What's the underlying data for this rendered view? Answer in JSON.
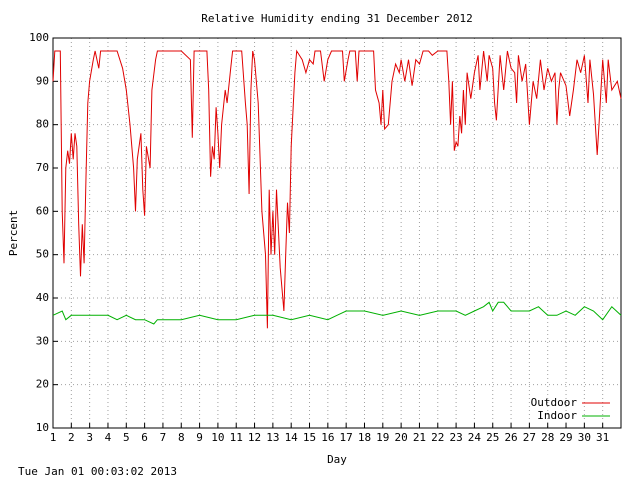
{
  "chart_data": {
    "type": "line",
    "title": "Relative Humidity ending 31 December 2012",
    "x_label": "Day",
    "y_label": "Percent",
    "footer": "Tue Jan 01 00:03:02 2013",
    "xlim": [
      1,
      32
    ],
    "ylim": [
      10,
      100
    ],
    "xticks": [
      1,
      2,
      3,
      4,
      5,
      6,
      7,
      8,
      9,
      10,
      11,
      12,
      13,
      14,
      15,
      16,
      17,
      18,
      19,
      20,
      21,
      22,
      23,
      24,
      25,
      26,
      27,
      28,
      29,
      30,
      31
    ],
    "yticks": [
      10,
      20,
      30,
      40,
      50,
      60,
      70,
      80,
      90,
      100
    ],
    "grid": true,
    "legend": "bottom-right",
    "series": [
      {
        "name": "Outdoor",
        "color": "#e00000",
        "x": [
          1.0,
          1.1,
          1.4,
          1.5,
          1.6,
          1.7,
          1.8,
          1.9,
          2.0,
          2.1,
          2.2,
          2.3,
          2.4,
          2.5,
          2.6,
          2.7,
          2.8,
          2.9,
          3.0,
          3.2,
          3.3,
          3.5,
          3.6,
          4.0,
          4.5,
          4.8,
          5.0,
          5.2,
          5.4,
          5.5,
          5.6,
          5.8,
          5.9,
          6.0,
          6.1,
          6.3,
          6.4,
          6.6,
          6.7,
          7.5,
          8.0,
          8.5,
          8.6,
          8.7,
          9.4,
          9.5,
          9.6,
          9.7,
          9.8,
          9.9,
          10.0,
          10.1,
          10.2,
          10.4,
          10.5,
          10.7,
          10.8,
          11.3,
          11.5,
          11.6,
          11.7,
          11.8,
          11.9,
          12.0,
          12.2,
          12.4,
          12.6,
          12.7,
          12.8,
          12.9,
          13.0,
          13.1,
          13.2,
          13.4,
          13.6,
          13.7,
          13.8,
          13.9,
          14.0,
          14.2,
          14.3,
          14.6,
          14.8,
          15.0,
          15.2,
          15.3,
          15.6,
          15.8,
          16.0,
          16.2,
          16.8,
          16.9,
          17.1,
          17.2,
          17.5,
          17.6,
          17.7,
          18.5,
          18.6,
          18.8,
          18.9,
          19.0,
          19.1,
          19.3,
          19.5,
          19.7,
          19.9,
          20.0,
          20.2,
          20.4,
          20.6,
          20.8,
          21.0,
          21.2,
          21.5,
          21.7,
          22.0,
          22.5,
          22.6,
          22.7,
          22.8,
          22.9,
          23.0,
          23.1,
          23.2,
          23.3,
          23.4,
          23.5,
          23.6,
          23.8,
          24.0,
          24.2,
          24.3,
          24.5,
          24.7,
          24.8,
          25.0,
          25.1,
          25.2,
          25.4,
          25.6,
          25.8,
          26.0,
          26.2,
          26.3,
          26.4,
          26.6,
          26.8,
          27.0,
          27.2,
          27.4,
          27.6,
          27.8,
          28.0,
          28.2,
          28.4,
          28.5,
          28.6,
          28.7,
          29.0,
          29.2,
          29.4,
          29.6,
          29.8,
          30.0,
          30.2,
          30.3,
          30.5,
          30.7,
          30.8,
          31.0,
          31.2,
          31.3,
          31.5,
          31.8,
          32.0
        ],
        "values": [
          90,
          97,
          97,
          60,
          48,
          70,
          74,
          71,
          78,
          72,
          78,
          75,
          57,
          45,
          57,
          48,
          68,
          85,
          90,
          95,
          97,
          93,
          97,
          97,
          97,
          93,
          88,
          80,
          70,
          60,
          72,
          78,
          65,
          59,
          75,
          70,
          88,
          95,
          97,
          97,
          97,
          95,
          77,
          97,
          97,
          88,
          68,
          75,
          72,
          84,
          78,
          70,
          80,
          88,
          85,
          93,
          97,
          97,
          85,
          80,
          64,
          88,
          97,
          95,
          85,
          60,
          50,
          33,
          65,
          50,
          60,
          50,
          65,
          47,
          37,
          50,
          62,
          55,
          75,
          92,
          97,
          95,
          92,
          95,
          94,
          97,
          97,
          90,
          95,
          97,
          97,
          90,
          95,
          97,
          97,
          90,
          97,
          97,
          88,
          85,
          80,
          88,
          79,
          80,
          90,
          94,
          92,
          95,
          90,
          95,
          89,
          95,
          94,
          97,
          97,
          96,
          97,
          97,
          90,
          80,
          90,
          74,
          76,
          75,
          82,
          78,
          88,
          80,
          92,
          86,
          92,
          96,
          88,
          97,
          90,
          96,
          93,
          85,
          81,
          96,
          88,
          97,
          93,
          92,
          85,
          96,
          90,
          94,
          80,
          90,
          86,
          95,
          88,
          93,
          90,
          92,
          80,
          88,
          92,
          89,
          82,
          88,
          95,
          92,
          96,
          85,
          95,
          87,
          73,
          80,
          95,
          85,
          95,
          88,
          90,
          86
        ]
      },
      {
        "name": "Indoor",
        "color": "#00b000",
        "x": [
          1.0,
          1.5,
          1.7,
          2.0,
          2.5,
          3.0,
          4.0,
          4.5,
          5.0,
          5.5,
          6.0,
          6.5,
          6.7,
          7.0,
          8.0,
          9.0,
          10.0,
          11.0,
          12.0,
          13.0,
          14.0,
          15.0,
          16.0,
          16.5,
          17.0,
          18.0,
          19.0,
          20.0,
          21.0,
          22.0,
          23.0,
          23.5,
          24.0,
          24.5,
          24.8,
          25.0,
          25.3,
          25.6,
          26.0,
          26.5,
          27.0,
          27.5,
          28.0,
          28.5,
          29.0,
          29.5,
          30.0,
          30.5,
          31.0,
          31.5,
          32.0
        ],
        "values": [
          36,
          37,
          35,
          36,
          36,
          36,
          36,
          35,
          36,
          35,
          35,
          34,
          35,
          35,
          35,
          36,
          35,
          35,
          36,
          36,
          35,
          36,
          35,
          36,
          37,
          37,
          36,
          37,
          36,
          37,
          37,
          36,
          37,
          38,
          39,
          37,
          39,
          39,
          37,
          37,
          37,
          38,
          36,
          36,
          37,
          36,
          38,
          37,
          35,
          38,
          36
        ]
      }
    ]
  }
}
